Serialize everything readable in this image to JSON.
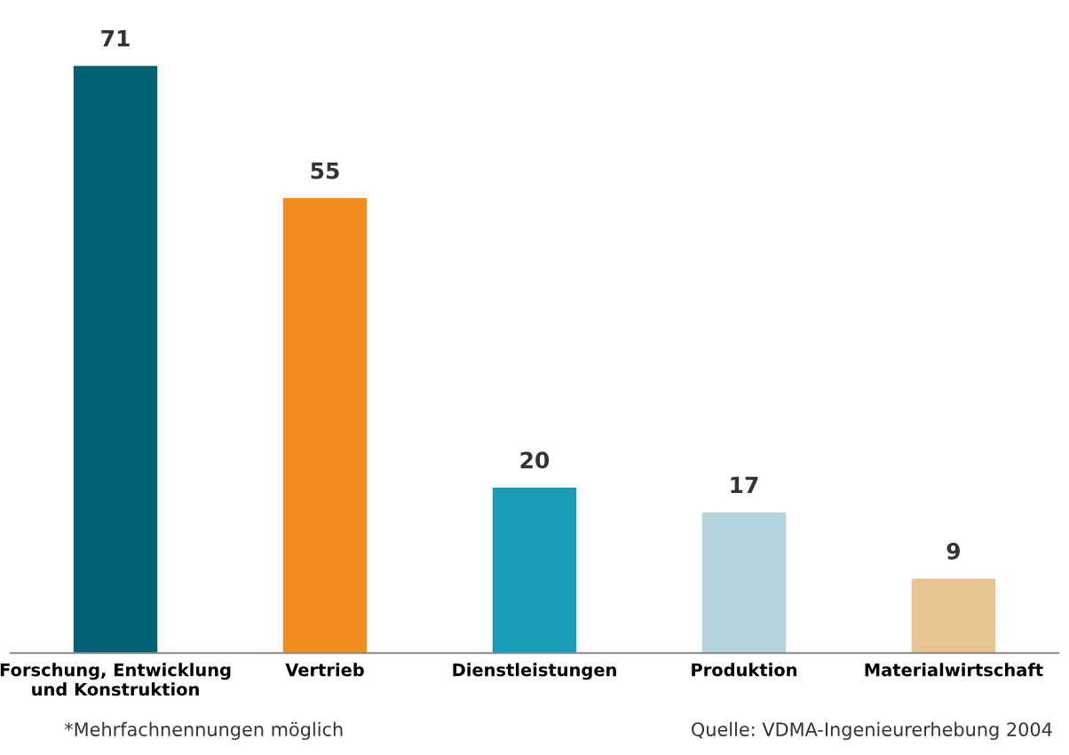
{
  "chart_data": {
    "type": "bar",
    "categories": [
      "Forschung, Entwicklung\nund Konstruktion",
      "Vertrieb",
      "Dienstleistungen",
      "Produktion",
      "Materialwirtschaft"
    ],
    "values": [
      71,
      55,
      20,
      17,
      9
    ],
    "colors": [
      "#006272",
      "#f28c1e",
      "#1a9bb8",
      "#b5d3dd",
      "#e8c490"
    ],
    "data_labels": true,
    "grid": false,
    "annotations": [
      "*Mehrfachnennungen möglich",
      "Quelle: VDMA-Ingenieurerhebung 2004"
    ]
  }
}
